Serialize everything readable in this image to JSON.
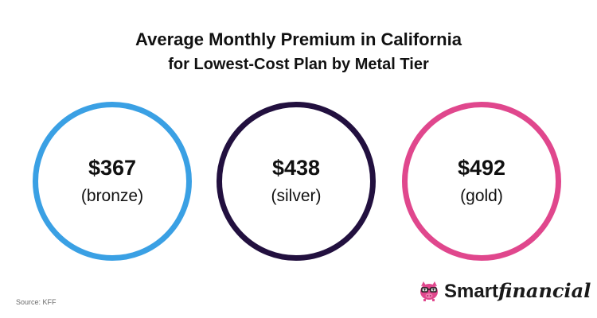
{
  "title": {
    "line1": "Average Monthly Premium in California",
    "line2": "for Lowest-Cost Plan by Metal Tier"
  },
  "tiers": [
    {
      "amount": "$367",
      "label": "(bronze)",
      "color": "#3aa0e4"
    },
    {
      "amount": "$438",
      "label": "(silver)",
      "color": "#22103f"
    },
    {
      "amount": "$492",
      "label": "(gold)",
      "color": "#e0478d"
    }
  ],
  "source": "Source: KFF",
  "logo": {
    "icon": "piggy-bank-glasses-icon",
    "part1": "Smart",
    "part2": "financial",
    "accent": "#e0478d"
  }
}
